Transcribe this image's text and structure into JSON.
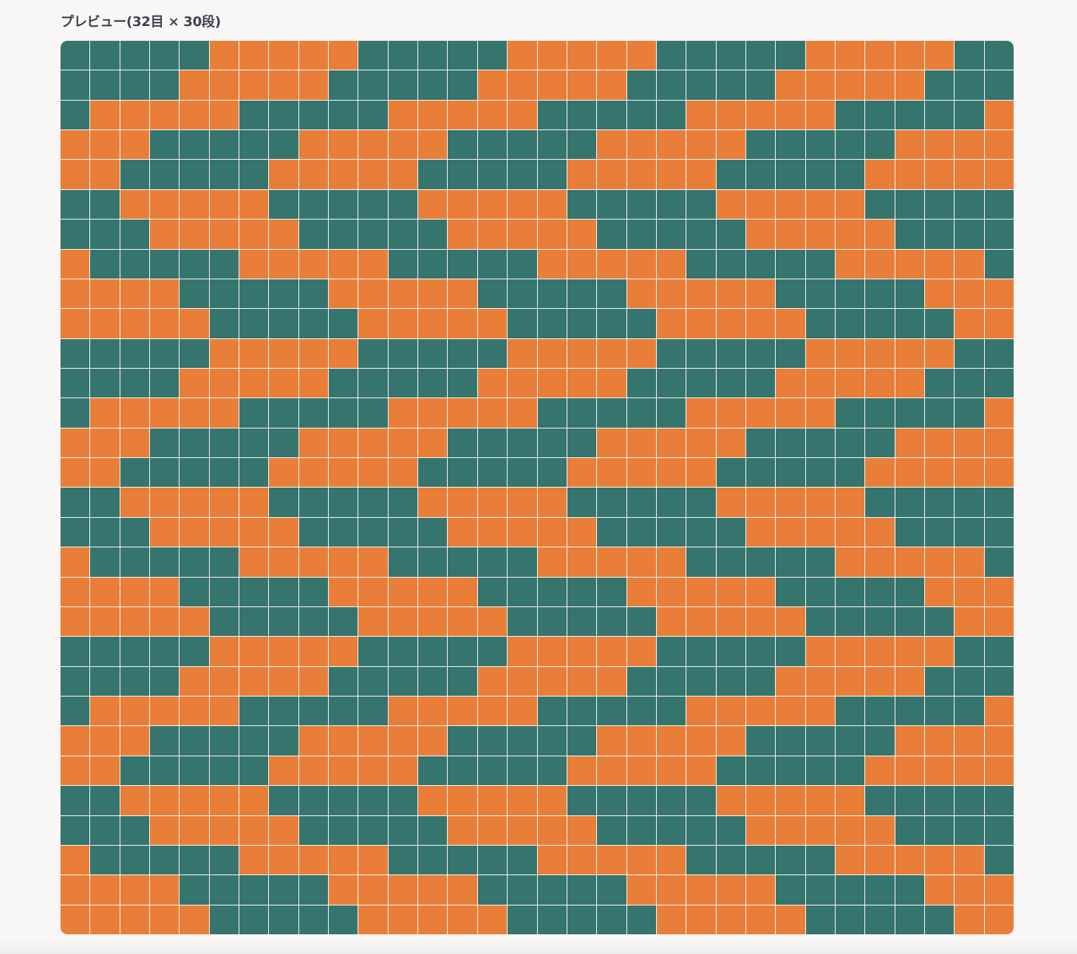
{
  "preview": {
    "title": "プレビュー(32目 × 30段)",
    "stitches": 32,
    "rows": 30,
    "colors": {
      "teal": "#36746e",
      "orange": "#e97e38"
    },
    "pattern": [
      "TTTTTOOOOOTTTTTOOOOOTTTTTOOOOOTT",
      "TTTTOOOOOTTTTTOOOOOTTTTTOOOOOTTT",
      "TOOOOOTTTTTOOOOOTTTTTOOOOOTTTTTO",
      "OOOTTTTTOOOOOTTTTTOOOOOTTTTTOOOO",
      "OOTTTTTOOOOOTTTTTOOOOOTTTTTOOOOO",
      "TTOOOOOTTTTTOOOOOTTTTTOOOOOTTTTT",
      "TTTOOOOOTTTTTOOOOOTTTTTOOOOOTTTT",
      "OTTTTTOOOOOTTTTTOOOOOTTTTTOOOOOT",
      "OOOOTTTTTOOOOOTTTTTOOOOOTTTTTOOO",
      "OOOOOTTTTTOOOOOTTTTTOOOOOTTTTTOO",
      "TTTTTOOOOOTTTTTOOOOOTTTTTOOOOOTT",
      "TTTTOOOOOTTTTTOOOOOTTTTTOOOOOTTT",
      "TOOOOOTTTTTOOOOOTTTTTOOOOOTTTTTO",
      "OOOTTTTTOOOOOTTTTTOOOOOTTTTTOOOO",
      "OOTTTTTOOOOOTTTTTOOOOOTTTTTOOOOO",
      "TTOOOOOTTTTTOOOOOTTTTTOOOOOTTTTT",
      "TTTOOOOOTTTTTOOOOOTTTTTOOOOOTTTT",
      "OTTTTTOOOOOTTTTTOOOOOTTTTTOOOOOT",
      "OOOOTTTTTOOOOOTTTTTOOOOOTTTTTOOO",
      "OOOOOTTTTTOOOOOTTTTTOOOOOTTTTTOO",
      "TTTTTOOOOOTTTTTOOOOOTTTTTOOOOOTT",
      "TTTTOOOOOTTTTTOOOOOTTTTTOOOOOTTT",
      "TOOOOOTTTTTOOOOOTTTTTOOOOOTTTTTO",
      "OOOTTTTTOOOOOTTTTTOOOOOTTTTTOOOO",
      "OOTTTTTOOOOOTTTTTOOOOOTTTTTOOOOO",
      "TTOOOOOTTTTTOOOOOTTTTTOOOOOTTTTT",
      "TTTOOOOOTTTTTOOOOOTTTTTOOOOOTTTT",
      "OTTTTTOOOOOTTTTTOOOOOTTTTTOOOOOT",
      "OOOOTTTTTOOOOOTTTTTOOOOOTTTTTOOO",
      "OOOOOTTTTTOOOOOTTTTTOOOOOTTTTTOO"
    ]
  }
}
